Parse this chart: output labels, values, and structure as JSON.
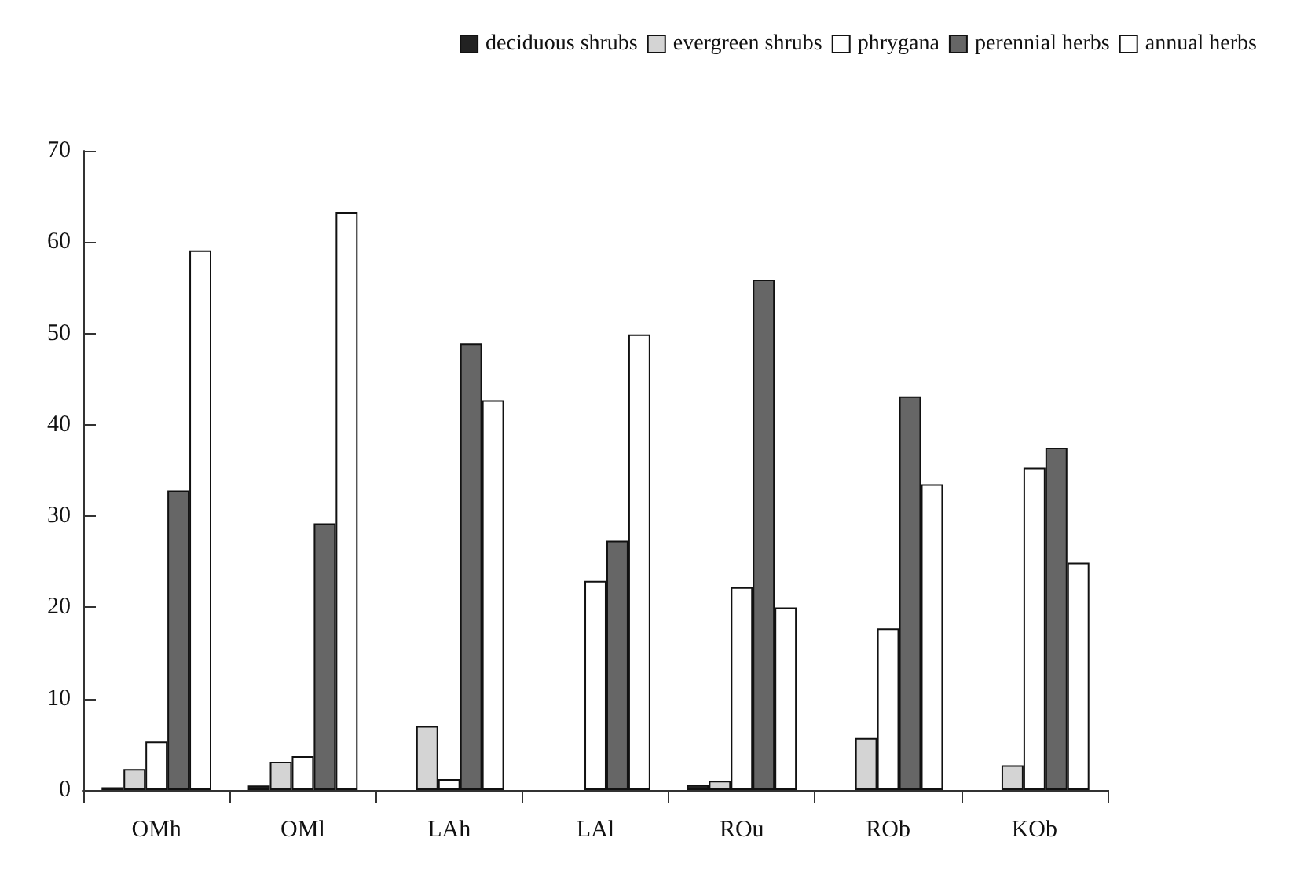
{
  "chart_data": {
    "type": "bar",
    "categories": [
      "OMh",
      "OMl",
      "LAh",
      "LAl",
      "ROu",
      "ROb",
      "KOb"
    ],
    "series": [
      {
        "name": "deciduous shrubs",
        "color": "#222222",
        "values": [
          0.3,
          0.5,
          0,
          0,
          0.6,
          0,
          0
        ]
      },
      {
        "name": "evergreen shrubs",
        "color": "#d4d4d4",
        "values": [
          2.3,
          3.1,
          7.0,
          0,
          1.0,
          5.7,
          2.7
        ]
      },
      {
        "name": "phrygana",
        "color": "#ffffff",
        "values": [
          5.3,
          3.7,
          1.2,
          22.9,
          22.2,
          17.7,
          35.3
        ]
      },
      {
        "name": "perennial herbs",
        "color": "#666666",
        "values": [
          32.8,
          29.2,
          48.9,
          27.3,
          55.9,
          43.1,
          37.5
        ]
      },
      {
        "name": "annual herbs",
        "color": "#ffffff",
        "values": [
          59.1,
          63.3,
          42.7,
          49.9,
          20.0,
          33.5,
          24.9
        ]
      }
    ],
    "ylim": [
      0,
      70
    ],
    "yticks": [
      0,
      10,
      20,
      30,
      40,
      50,
      60,
      70
    ],
    "grid": false,
    "legend": "top right"
  }
}
